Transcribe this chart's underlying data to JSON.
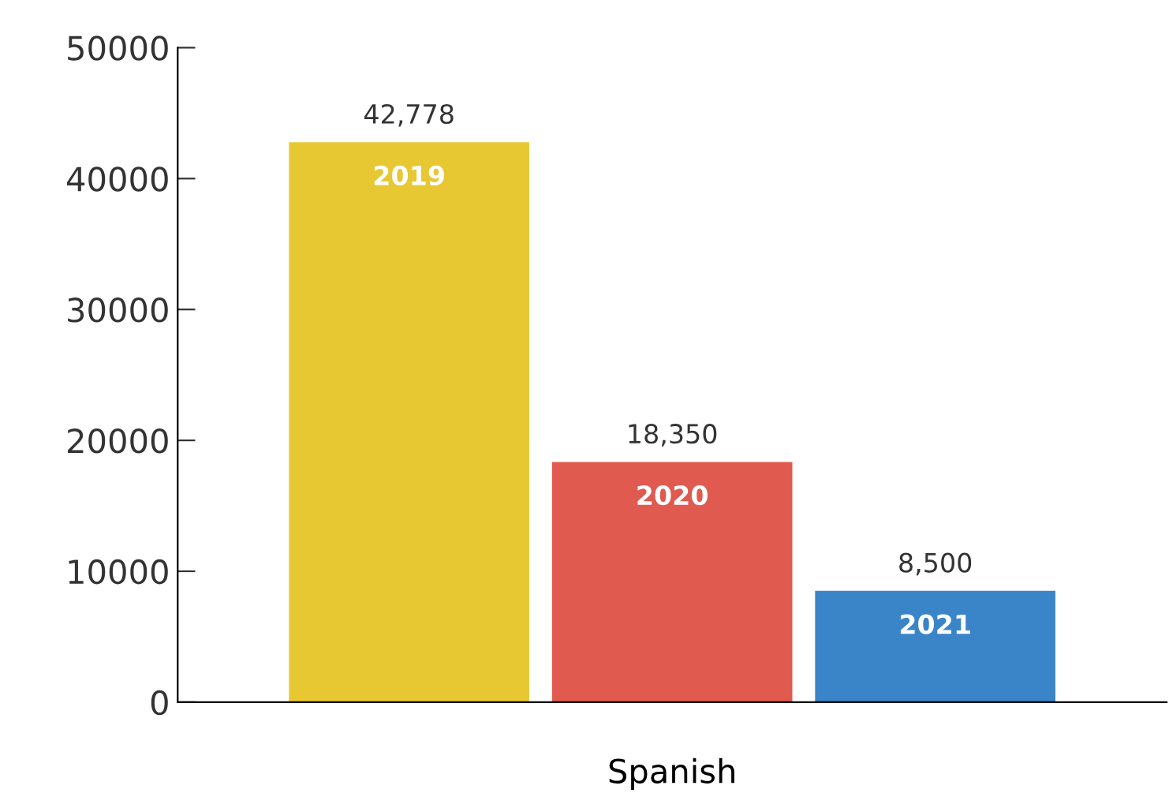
{
  "chart_data": {
    "type": "bar",
    "categories": [
      null
    ],
    "xlabel": "Spanish",
    "series": [
      {
        "name": "2019",
        "color": "#e8c832",
        "values": [
          42778
        ]
      },
      {
        "name": "2020",
        "color": "#e05a50",
        "values": [
          18350
        ]
      },
      {
        "name": "2021",
        "color": "#3a84c8",
        "values": [
          8500
        ]
      }
    ],
    "value_labels": [
      [
        "42,778"
      ],
      [
        "18,350"
      ],
      [
        "8,500"
      ]
    ],
    "ylim": [
      0,
      50000
    ],
    "yticks": [
      0,
      10000,
      20000,
      30000,
      40000,
      50000
    ],
    "grid": false,
    "legend": false
  }
}
